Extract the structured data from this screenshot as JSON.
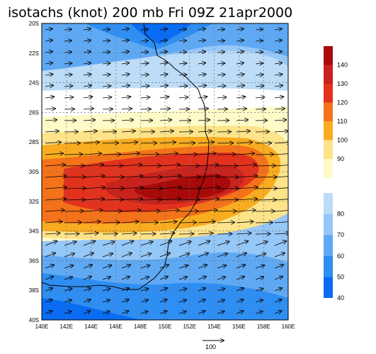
{
  "title": "isotachs (knot) 200 mb Fri 09Z 21apr2000",
  "map": {
    "lat_ticks": [
      "20S",
      "22S",
      "24S",
      "26S",
      "28S",
      "30S",
      "32S",
      "34S",
      "36S",
      "38S",
      "40S"
    ],
    "lon_ticks": [
      "140E",
      "142E",
      "144E",
      "146E",
      "148E",
      "150E",
      "152E",
      "154E",
      "156E",
      "158E",
      "160E"
    ],
    "lat_range": [
      -40,
      -20
    ],
    "lon_range": [
      140,
      160
    ],
    "gridlines": true
  },
  "colorbar_fast": {
    "labels": [
      "90",
      "100",
      "110",
      "120",
      "130",
      "140"
    ],
    "colors": [
      "#fffbc8",
      "#fde38a",
      "#f9ac1f",
      "#f3721a",
      "#e2321d",
      "#c8221c",
      "#a80a0a"
    ]
  },
  "colorbar_slow": {
    "labels": [
      "40",
      "50",
      "60",
      "70",
      "80"
    ],
    "colors": [
      "#0a6cf2",
      "#2f8ef2",
      "#5fa9f4",
      "#95c7f7",
      "#bcdcf8"
    ]
  },
  "vector_reference": {
    "label": "100"
  }
}
